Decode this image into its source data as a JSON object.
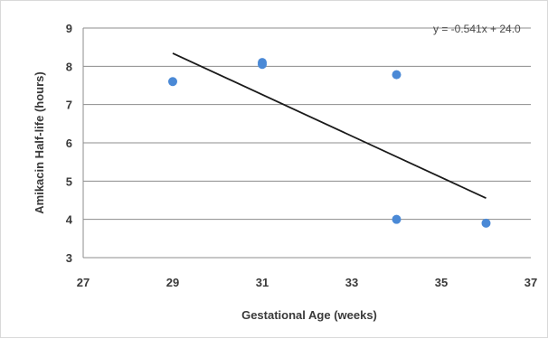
{
  "chart_data": {
    "type": "scatter",
    "xlabel": "Gestational Age (weeks)",
    "ylabel": "Amikacin Half-life (hours)",
    "xlim": [
      27,
      37
    ],
    "ylim": [
      3,
      9
    ],
    "x_ticks": [
      27,
      29,
      31,
      33,
      35,
      37
    ],
    "y_ticks": [
      3,
      4,
      5,
      6,
      7,
      8,
      9
    ],
    "grid": "horizontal",
    "legend": "none",
    "series": [
      {
        "points": [
          {
            "x": 29,
            "y": 7.6
          },
          {
            "x": 31,
            "y": 8.1
          },
          {
            "x": 31,
            "y": 8.05
          },
          {
            "x": 34,
            "y": 7.78
          },
          {
            "x": 34,
            "y": 4.0
          },
          {
            "x": 36,
            "y": 3.9
          }
        ],
        "color": "#4a89d6"
      }
    ],
    "trendline": {
      "type": "linear",
      "equation": "y = -0.541x + 24.0",
      "slope": -0.541,
      "intercept": 24.03,
      "x_range": [
        29,
        36
      ],
      "color": "#1a1a1a"
    }
  }
}
